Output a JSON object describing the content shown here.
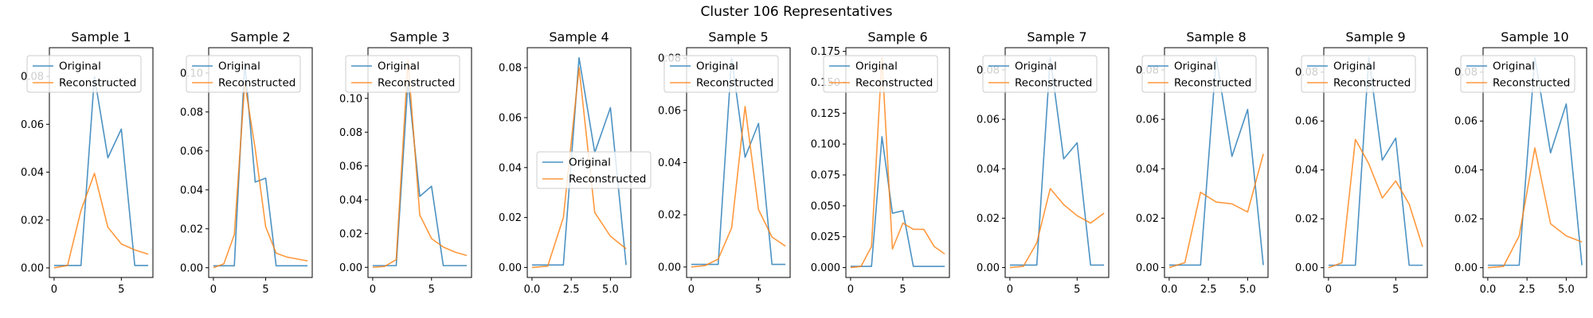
{
  "figure": {
    "suptitle": "Cluster 106 Representatives"
  },
  "colors": {
    "original": "#1f77b4",
    "reconstructed": "#ff7f0e"
  },
  "chart_data": [
    {
      "type": "line",
      "title": "Sample 1",
      "x": [
        0,
        1,
        2,
        3,
        4,
        5,
        6,
        7
      ],
      "series": [
        {
          "name": "Original",
          "values": [
            0.001,
            0.001,
            0.001,
            0.08,
            0.046,
            0.058,
            0.001,
            0.001
          ]
        },
        {
          "name": "Reconstructed",
          "values": [
            0.0,
            0.001,
            0.024,
            0.0395,
            0.017,
            0.01,
            0.0075,
            0.0057
          ]
        }
      ],
      "xlim": [
        -0.35,
        7.35
      ],
      "ylim": [
        -0.004,
        0.092
      ],
      "xticks": [
        0,
        5
      ],
      "xtick_labels": [
        "0",
        "5"
      ],
      "yticks": [
        0.0,
        0.02,
        0.04,
        0.06,
        0.08
      ],
      "ytick_labels": [
        "0.00",
        "0.02",
        "0.04",
        "0.06",
        "0.08"
      ],
      "legend": {
        "position": "upper-left"
      }
    },
    {
      "type": "line",
      "title": "Sample 2",
      "x": [
        0,
        1,
        2,
        3,
        4,
        5,
        6,
        7,
        8,
        9
      ],
      "series": [
        {
          "name": "Original",
          "values": [
            0.001,
            0.001,
            0.001,
            0.105,
            0.044,
            0.046,
            0.001,
            0.001,
            0.001,
            0.001
          ]
        },
        {
          "name": "Reconstructed",
          "values": [
            0.0,
            0.002,
            0.017,
            0.095,
            0.061,
            0.021,
            0.0075,
            0.0055,
            0.0045,
            0.0035
          ]
        }
      ],
      "xlim": [
        -0.45,
        9.45
      ],
      "ylim": [
        -0.005,
        0.113
      ],
      "xticks": [
        0,
        5
      ],
      "xtick_labels": [
        "0",
        "5"
      ],
      "yticks": [
        0.0,
        0.02,
        0.04,
        0.06,
        0.08,
        0.1
      ],
      "ytick_labels": [
        "0.00",
        "0.02",
        "0.04",
        "0.06",
        "0.08",
        "0.10"
      ],
      "legend": {
        "position": "upper-left"
      }
    },
    {
      "type": "line",
      "title": "Sample 3",
      "x": [
        0,
        1,
        2,
        3,
        4,
        5,
        6,
        7,
        8
      ],
      "series": [
        {
          "name": "Original",
          "values": [
            0.001,
            0.001,
            0.001,
            0.11,
            0.042,
            0.048,
            0.001,
            0.001,
            0.001
          ]
        },
        {
          "name": "Reconstructed",
          "values": [
            0.0,
            0.0005,
            0.0045,
            0.123,
            0.031,
            0.017,
            0.012,
            0.009,
            0.007
          ]
        }
      ],
      "xlim": [
        -0.4,
        8.4
      ],
      "ylim": [
        -0.006,
        0.13
      ],
      "xticks": [
        0,
        5
      ],
      "xtick_labels": [
        "0",
        "5"
      ],
      "yticks": [
        0.0,
        0.02,
        0.04,
        0.06,
        0.08,
        0.1
      ],
      "ytick_labels": [
        "0.00",
        "0.02",
        "0.04",
        "0.06",
        "0.08",
        "0.10"
      ],
      "legend": {
        "position": "upper-left"
      }
    },
    {
      "type": "line",
      "title": "Sample 4",
      "x": [
        0,
        1,
        2,
        3,
        4,
        5,
        6
      ],
      "series": [
        {
          "name": "Original",
          "values": [
            0.001,
            0.001,
            0.001,
            0.084,
            0.046,
            0.064,
            0.001
          ]
        },
        {
          "name": "Reconstructed",
          "values": [
            0.0,
            0.0005,
            0.02,
            0.08,
            0.022,
            0.0125,
            0.0075
          ]
        }
      ],
      "xlim": [
        -0.3,
        6.3
      ],
      "ylim": [
        -0.004,
        0.088
      ],
      "xticks": [
        0.0,
        2.5,
        5.0
      ],
      "xtick_labels": [
        "0.0",
        "2.5",
        "5.0"
      ],
      "yticks": [
        0.0,
        0.02,
        0.04,
        0.06,
        0.08
      ],
      "ytick_labels": [
        "0.00",
        "0.02",
        "0.04",
        "0.06",
        "0.08"
      ],
      "legend": {
        "position": "center"
      }
    },
    {
      "type": "line",
      "title": "Sample 5",
      "x": [
        0,
        1,
        2,
        3,
        4,
        5,
        6,
        7
      ],
      "series": [
        {
          "name": "Original",
          "values": [
            0.001,
            0.001,
            0.001,
            0.08,
            0.042,
            0.055,
            0.001,
            0.001
          ]
        },
        {
          "name": "Reconstructed",
          "values": [
            0.0,
            0.0005,
            0.003,
            0.015,
            0.0615,
            0.022,
            0.0115,
            0.008
          ]
        }
      ],
      "xlim": [
        -0.35,
        7.35
      ],
      "ylim": [
        -0.004,
        0.084
      ],
      "xticks": [
        0,
        5
      ],
      "xtick_labels": [
        "0",
        "5"
      ],
      "yticks": [
        0.0,
        0.02,
        0.04,
        0.06,
        0.08
      ],
      "ytick_labels": [
        "0.00",
        "0.02",
        "0.04",
        "0.06",
        "0.08"
      ],
      "legend": {
        "position": "upper-left"
      }
    },
    {
      "type": "line",
      "title": "Sample 6",
      "x": [
        0,
        1,
        2,
        3,
        4,
        5,
        6,
        7,
        8,
        9
      ],
      "series": [
        {
          "name": "Original",
          "values": [
            0.001,
            0.001,
            0.001,
            0.106,
            0.044,
            0.046,
            0.001,
            0.001,
            0.001,
            0.001
          ]
        },
        {
          "name": "Reconstructed",
          "values": [
            0.0,
            0.001,
            0.017,
            0.17,
            0.015,
            0.036,
            0.031,
            0.031,
            0.017,
            0.011
          ]
        }
      ],
      "xlim": [
        -0.45,
        9.45
      ],
      "ylim": [
        -0.008,
        0.178
      ],
      "xticks": [
        0,
        5
      ],
      "xtick_labels": [
        "0",
        "5"
      ],
      "yticks": [
        0.0,
        0.025,
        0.05,
        0.075,
        0.1,
        0.125,
        0.15,
        0.175
      ],
      "ytick_labels": [
        "0.000",
        "0.025",
        "0.050",
        "0.075",
        "0.100",
        "0.125",
        "0.150",
        "0.175"
      ],
      "legend": {
        "position": "upper-left"
      }
    },
    {
      "type": "line",
      "title": "Sample 7",
      "x": [
        0,
        1,
        2,
        3,
        4,
        5,
        6,
        7
      ],
      "series": [
        {
          "name": "Original",
          "values": [
            0.001,
            0.001,
            0.001,
            0.085,
            0.044,
            0.0505,
            0.001,
            0.001
          ]
        },
        {
          "name": "Reconstructed",
          "values": [
            0.0,
            0.0005,
            0.01,
            0.032,
            0.0255,
            0.021,
            0.018,
            0.022
          ]
        }
      ],
      "xlim": [
        -0.35,
        7.35
      ],
      "ylim": [
        -0.004,
        0.089
      ],
      "xticks": [
        0,
        5
      ],
      "xtick_labels": [
        "0",
        "5"
      ],
      "yticks": [
        0.0,
        0.02,
        0.04,
        0.06,
        0.08
      ],
      "ytick_labels": [
        "0.00",
        "0.02",
        "0.04",
        "0.06",
        "0.08"
      ],
      "legend": {
        "position": "upper-left"
      }
    },
    {
      "type": "line",
      "title": "Sample 8",
      "x": [
        0,
        1,
        2,
        3,
        4,
        5,
        6
      ],
      "series": [
        {
          "name": "Original",
          "values": [
            0.001,
            0.001,
            0.001,
            0.085,
            0.045,
            0.064,
            0.001
          ]
        },
        {
          "name": "Reconstructed",
          "values": [
            0.0,
            0.002,
            0.0305,
            0.0265,
            0.0258,
            0.0225,
            0.046
          ]
        }
      ],
      "xlim": [
        -0.3,
        6.3
      ],
      "ylim": [
        -0.004,
        0.089
      ],
      "xticks": [
        0.0,
        2.5,
        5.0
      ],
      "xtick_labels": [
        "0.0",
        "2.5",
        "5.0"
      ],
      "yticks": [
        0.0,
        0.02,
        0.04,
        0.06,
        0.08
      ],
      "ytick_labels": [
        "0.00",
        "0.02",
        "0.04",
        "0.06",
        "0.08"
      ],
      "legend": {
        "position": "upper-left"
      }
    },
    {
      "type": "line",
      "title": "Sample 9",
      "x": [
        0,
        1,
        2,
        3,
        4,
        5,
        6,
        7
      ],
      "series": [
        {
          "name": "Original",
          "values": [
            0.001,
            0.001,
            0.001,
            0.086,
            0.044,
            0.053,
            0.001,
            0.001
          ]
        },
        {
          "name": "Reconstructed",
          "values": [
            0.0,
            0.002,
            0.0525,
            0.0425,
            0.0285,
            0.0355,
            0.026,
            0.0085
          ]
        }
      ],
      "xlim": [
        -0.35,
        7.35
      ],
      "ylim": [
        -0.004,
        0.09
      ],
      "xticks": [
        0,
        5
      ],
      "xtick_labels": [
        "0",
        "5"
      ],
      "yticks": [
        0.0,
        0.02,
        0.04,
        0.06,
        0.08
      ],
      "ytick_labels": [
        "0.00",
        "0.02",
        "0.04",
        "0.06",
        "0.08"
      ],
      "legend": {
        "position": "upper-left"
      }
    },
    {
      "type": "line",
      "title": "Sample 10",
      "x": [
        0,
        1,
        2,
        3,
        4,
        5,
        6
      ],
      "series": [
        {
          "name": "Original",
          "values": [
            0.001,
            0.001,
            0.001,
            0.086,
            0.047,
            0.067,
            0.001
          ]
        },
        {
          "name": "Reconstructed",
          "values": [
            0.0,
            0.0005,
            0.013,
            0.049,
            0.018,
            0.013,
            0.0105
          ]
        }
      ],
      "xlim": [
        -0.3,
        6.3
      ],
      "ylim": [
        -0.004,
        0.09
      ],
      "xticks": [
        0.0,
        2.5,
        5.0
      ],
      "xtick_labels": [
        "0.0",
        "2.5",
        "5.0"
      ],
      "yticks": [
        0.0,
        0.02,
        0.04,
        0.06,
        0.08
      ],
      "ytick_labels": [
        "0.00",
        "0.02",
        "0.04",
        "0.06",
        "0.08"
      ],
      "legend": {
        "position": "upper-left"
      }
    }
  ]
}
